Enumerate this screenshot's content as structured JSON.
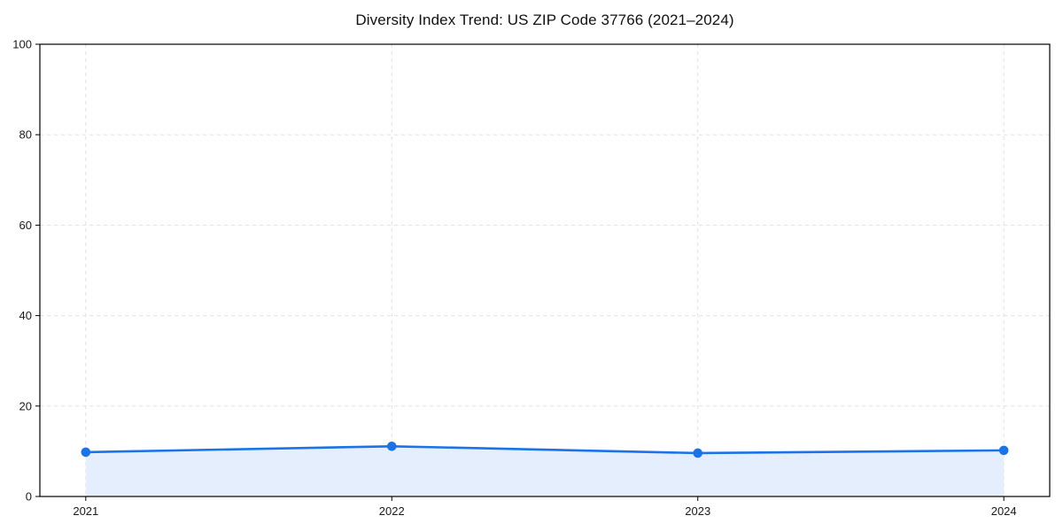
{
  "chart_data": {
    "type": "line",
    "title": "Diversity Index Trend: US ZIP Code 37766 (2021–2024)",
    "categories": [
      "2021",
      "2022",
      "2023",
      "2024"
    ],
    "x": [
      2021,
      2022,
      2023,
      2024
    ],
    "values": [
      9.8,
      11.1,
      9.6,
      10.2
    ],
    "xlabel": "",
    "ylabel": "",
    "xlim": [
      2020.85,
      2024.15
    ],
    "ylim": [
      0,
      100
    ],
    "yticks": [
      0,
      20,
      40,
      60,
      80,
      100
    ],
    "grid": "dashed",
    "legend": "none",
    "area_fill": true,
    "marker": "circle",
    "colors": {
      "line": "#1a73e8",
      "marker": "#1a73e8",
      "area_fill": "#e5eefd",
      "grid": "#e0e0e0",
      "spine": "#000000",
      "text": "#1a1a1a",
      "background": "#ffffff"
    }
  }
}
